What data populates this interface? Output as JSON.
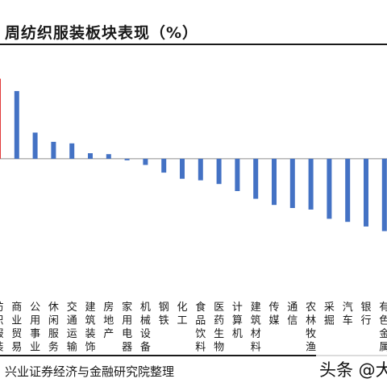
{
  "title": "周纺织服装板块表现（%）",
  "source": "兴业证券经济与金融研究院整理",
  "watermark": "头条 @大",
  "colors": {
    "bar": "#4472c4",
    "highlight": "#e03a3a",
    "axis": "#8c8c8c",
    "text": "#1a1a1a"
  },
  "chart_data": {
    "type": "bar",
    "title": "周纺织服装板块表现（%）",
    "categories": [
      "纺织服装",
      "商业贸易",
      "公用事业",
      "休闲服务",
      "交通运输",
      "建筑装饰",
      "房地产",
      "家用电器",
      "机械设备",
      "钢铁",
      "化工",
      "食品饮料",
      "医药生物",
      "计算机",
      "建筑材料",
      "传媒",
      "通信",
      "农林牧渔",
      "采掘",
      "汽车",
      "银行",
      "有色金属"
    ],
    "values": [
      2.6,
      2.2,
      0.85,
      0.55,
      0.5,
      0.18,
      0.15,
      -0.05,
      -0.2,
      -0.45,
      -0.65,
      -0.7,
      -0.82,
      -1.05,
      -1.3,
      -1.5,
      -1.6,
      -1.65,
      -1.95,
      -2.05,
      -2.2,
      -2.35
    ],
    "highlight": "纺织服装",
    "ylim": [
      -2.7,
      2.8
    ],
    "grid": false,
    "legend": "none"
  }
}
